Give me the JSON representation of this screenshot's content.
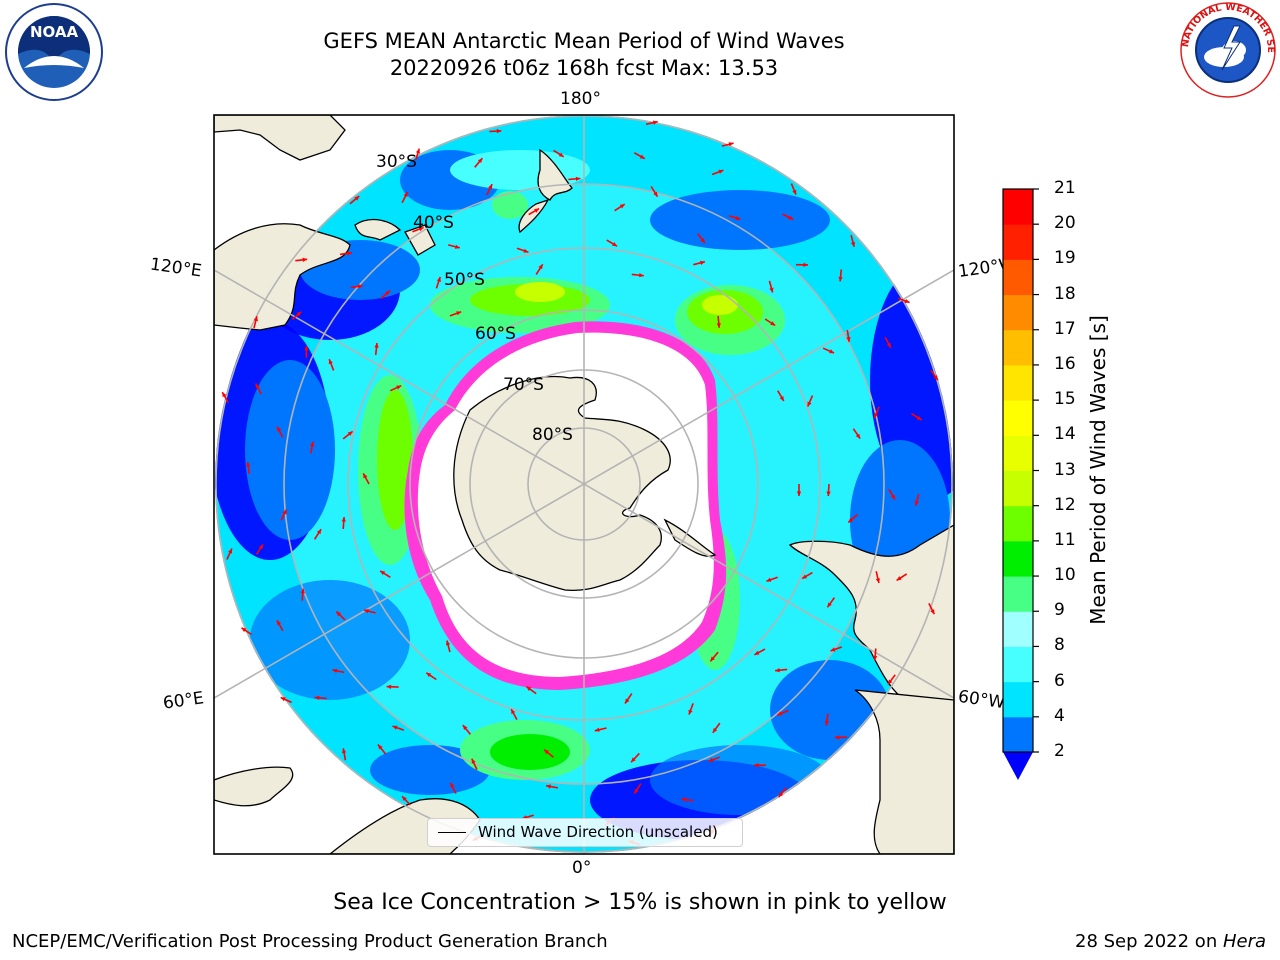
{
  "title": {
    "line1": "GEFS MEAN Antarctic Mean Period of Wind Waves",
    "line2": "20220926 t06z 168h fcst   Max: 13.53"
  },
  "logos": {
    "left": "NOAA",
    "left_ring_text": "NATIONAL OCEANIC AND ATMOSPHERIC ADMINISTRATION · U.S. DEPARTMENT OF COMMERCE",
    "right_ring_text": "NATIONAL WEATHER SERVICE"
  },
  "map": {
    "projection": "south-polar-stereographic",
    "lon_labels": {
      "top": "180°",
      "bottom": "0°",
      "upper_left": "120°E",
      "upper_right": "120°W",
      "lower_left": "60°E",
      "lower_right": "60°W"
    },
    "lat_labels": [
      "30°S",
      "40°S",
      "50°S",
      "60°S",
      "70°S",
      "80°S"
    ],
    "legend_label": "Wind Wave Direction (unscaled)",
    "colors": {
      "land": "#efecdc",
      "ice_edge": "#ff3ad8",
      "ice_inner": "#ffb000",
      "arrow": "#ff0000",
      "grid": "#b4b4b4"
    }
  },
  "colorbar": {
    "label": "Mean Period of Wind Waves [s]",
    "ticks": [
      "2",
      "4",
      "6",
      "8",
      "9",
      "10",
      "11",
      "12",
      "13",
      "14",
      "15",
      "16",
      "17",
      "18",
      "19",
      "20",
      "21"
    ],
    "colors": [
      "#0000ff",
      "#0076ff",
      "#00e4ff",
      "#47ffff",
      "#a0ffff",
      "#47ff84",
      "#00ee00",
      "#6dff00",
      "#c6ff00",
      "#e8ff00",
      "#ffff00",
      "#ffe500",
      "#ffbe00",
      "#ff8c00",
      "#ff5a00",
      "#ff2000",
      "#ff0000"
    ],
    "under_color": "#0000ff"
  },
  "note": "Sea Ice Concentration > 15% is shown in pink to yellow",
  "footer": {
    "left": "NCEP/EMC/Verification Post Processing Product Generation Branch",
    "right_prefix": "28 Sep 2022 on ",
    "right_host": "Hera"
  }
}
